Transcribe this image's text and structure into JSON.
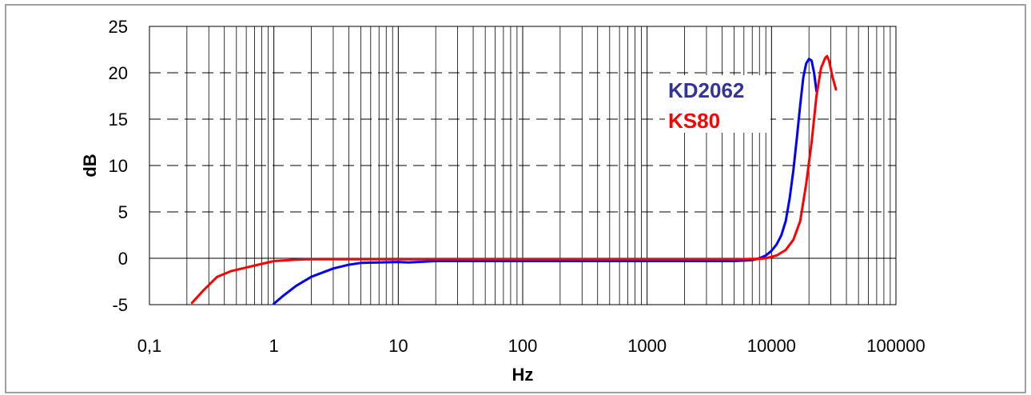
{
  "chart_data": {
    "type": "line",
    "xlabel": "Hz",
    "ylabel": "dB",
    "x_scale": "log",
    "xlim": [
      0.1,
      100000
    ],
    "ylim": [
      -5,
      25
    ],
    "x_ticks": [
      0.1,
      1,
      10,
      100,
      1000,
      10000,
      100000
    ],
    "x_tick_labels": [
      "0,1",
      "1",
      "10",
      "100",
      "1000",
      "10000",
      "100000"
    ],
    "y_ticks": [
      -5,
      0,
      5,
      10,
      15,
      20,
      25
    ],
    "y_tick_labels": [
      "-5",
      "0",
      "5",
      "10",
      "15",
      "20",
      "25"
    ],
    "grid": {
      "x": "solid minor and major (log decades)",
      "y": "dashed major"
    },
    "legend_placement": "inside top-right",
    "series": [
      {
        "name": "KD2062",
        "color": "#0000ff",
        "label_color": "#333399",
        "points": [
          [
            1,
            -4.9
          ],
          [
            1.2,
            -4.0
          ],
          [
            1.5,
            -3.0
          ],
          [
            2,
            -2.0
          ],
          [
            3,
            -1.1
          ],
          [
            4,
            -0.7
          ],
          [
            5,
            -0.5
          ],
          [
            7,
            -0.45
          ],
          [
            10,
            -0.4
          ],
          [
            12,
            -0.45
          ],
          [
            20,
            -0.3
          ],
          [
            100,
            -0.3
          ],
          [
            1000,
            -0.3
          ],
          [
            5000,
            -0.3
          ],
          [
            7000,
            -0.2
          ],
          [
            8000,
            0.0
          ],
          [
            9000,
            0.3
          ],
          [
            10000,
            0.8
          ],
          [
            11000,
            1.5
          ],
          [
            12000,
            2.5
          ],
          [
            13000,
            4.0
          ],
          [
            14000,
            6.5
          ],
          [
            15000,
            9.5
          ],
          [
            16000,
            13.0
          ],
          [
            17000,
            16.5
          ],
          [
            18000,
            19.5
          ],
          [
            19000,
            21.0
          ],
          [
            20000,
            21.5
          ],
          [
            21000,
            21.3
          ],
          [
            22000,
            20.0
          ],
          [
            23000,
            18.0
          ]
        ]
      },
      {
        "name": "KS80",
        "color": "#ff0000",
        "label_color": "#ff0000",
        "points": [
          [
            0.22,
            -4.8
          ],
          [
            0.27,
            -3.5
          ],
          [
            0.35,
            -2.0
          ],
          [
            0.45,
            -1.4
          ],
          [
            0.6,
            -1.0
          ],
          [
            0.8,
            -0.6
          ],
          [
            1,
            -0.3
          ],
          [
            1.5,
            -0.15
          ],
          [
            2,
            -0.1
          ],
          [
            10,
            -0.1
          ],
          [
            100,
            -0.1
          ],
          [
            1000,
            -0.1
          ],
          [
            5000,
            -0.1
          ],
          [
            8000,
            -0.05
          ],
          [
            9000,
            0.0
          ],
          [
            11000,
            0.3
          ],
          [
            13000,
            0.9
          ],
          [
            15000,
            2.0
          ],
          [
            17000,
            4.0
          ],
          [
            19000,
            8.0
          ],
          [
            21000,
            12.5
          ],
          [
            23000,
            17.5
          ],
          [
            25000,
            20.5
          ],
          [
            27000,
            21.6
          ],
          [
            28000,
            21.8
          ],
          [
            29000,
            21.3
          ],
          [
            31000,
            19.5
          ],
          [
            33000,
            18.2
          ]
        ]
      }
    ]
  },
  "colors": {
    "grid": "#000000",
    "frame": "#808080",
    "background": "#ffffff"
  }
}
